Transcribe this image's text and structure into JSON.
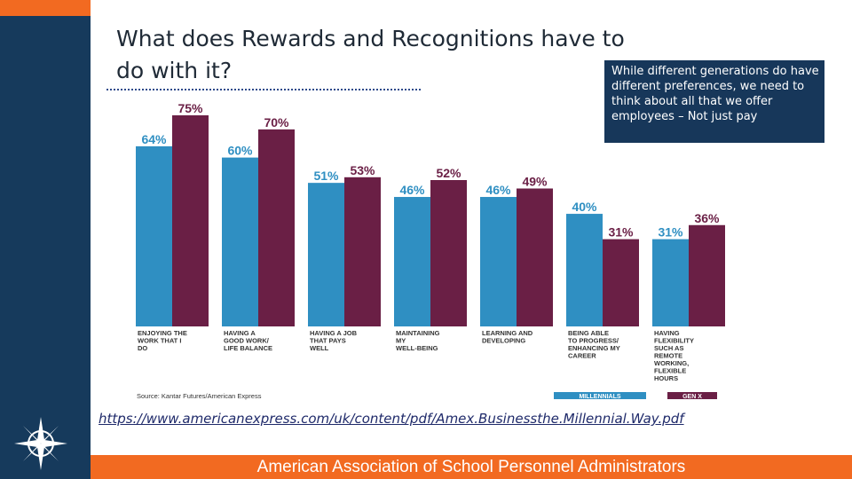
{
  "slide": {
    "title": "What does Rewards and Recognitions have to do with it?",
    "callout": "While different generations do have different preferences, we need to think about all that we offer employees – Not just pay",
    "link": "https://www.americanexpress.com/uk/content/pdf/Amex.Businessthe.Millennial.Way.pdf",
    "footer": "American Association of School Personnel Administrators"
  },
  "chart_data": {
    "type": "bar",
    "categories": [
      "ENJOYING THE WORK THAT I DO",
      "HAVING A GOOD WORK/ LIFE BALANCE",
      "HAVING A JOB THAT PAYS WELL",
      "MAINTAINING MY WELL-BEING",
      "LEARNING AND DEVELOPING",
      "BEING ABLE TO PROGRESS/ ENHANCING MY CAREER",
      "HAVING FLEXIBILITY SUCH AS REMOTE WORKING, FLEXIBLE HOURS"
    ],
    "series": [
      {
        "name": "MILLENNIALS",
        "values": [
          64,
          60,
          51,
          46,
          46,
          40,
          31
        ]
      },
      {
        "name": "GEN X",
        "values": [
          75,
          70,
          53,
          52,
          49,
          31,
          36
        ]
      }
    ],
    "value_suffix": "%",
    "source": "Source: Kantar Futures/American Express",
    "ylim": [
      0,
      80
    ],
    "legend_placement": "bottom-right",
    "colors": {
      "millennials": "#2f8fc2",
      "genx": "#6a1f45",
      "category_text": "#333333"
    }
  }
}
